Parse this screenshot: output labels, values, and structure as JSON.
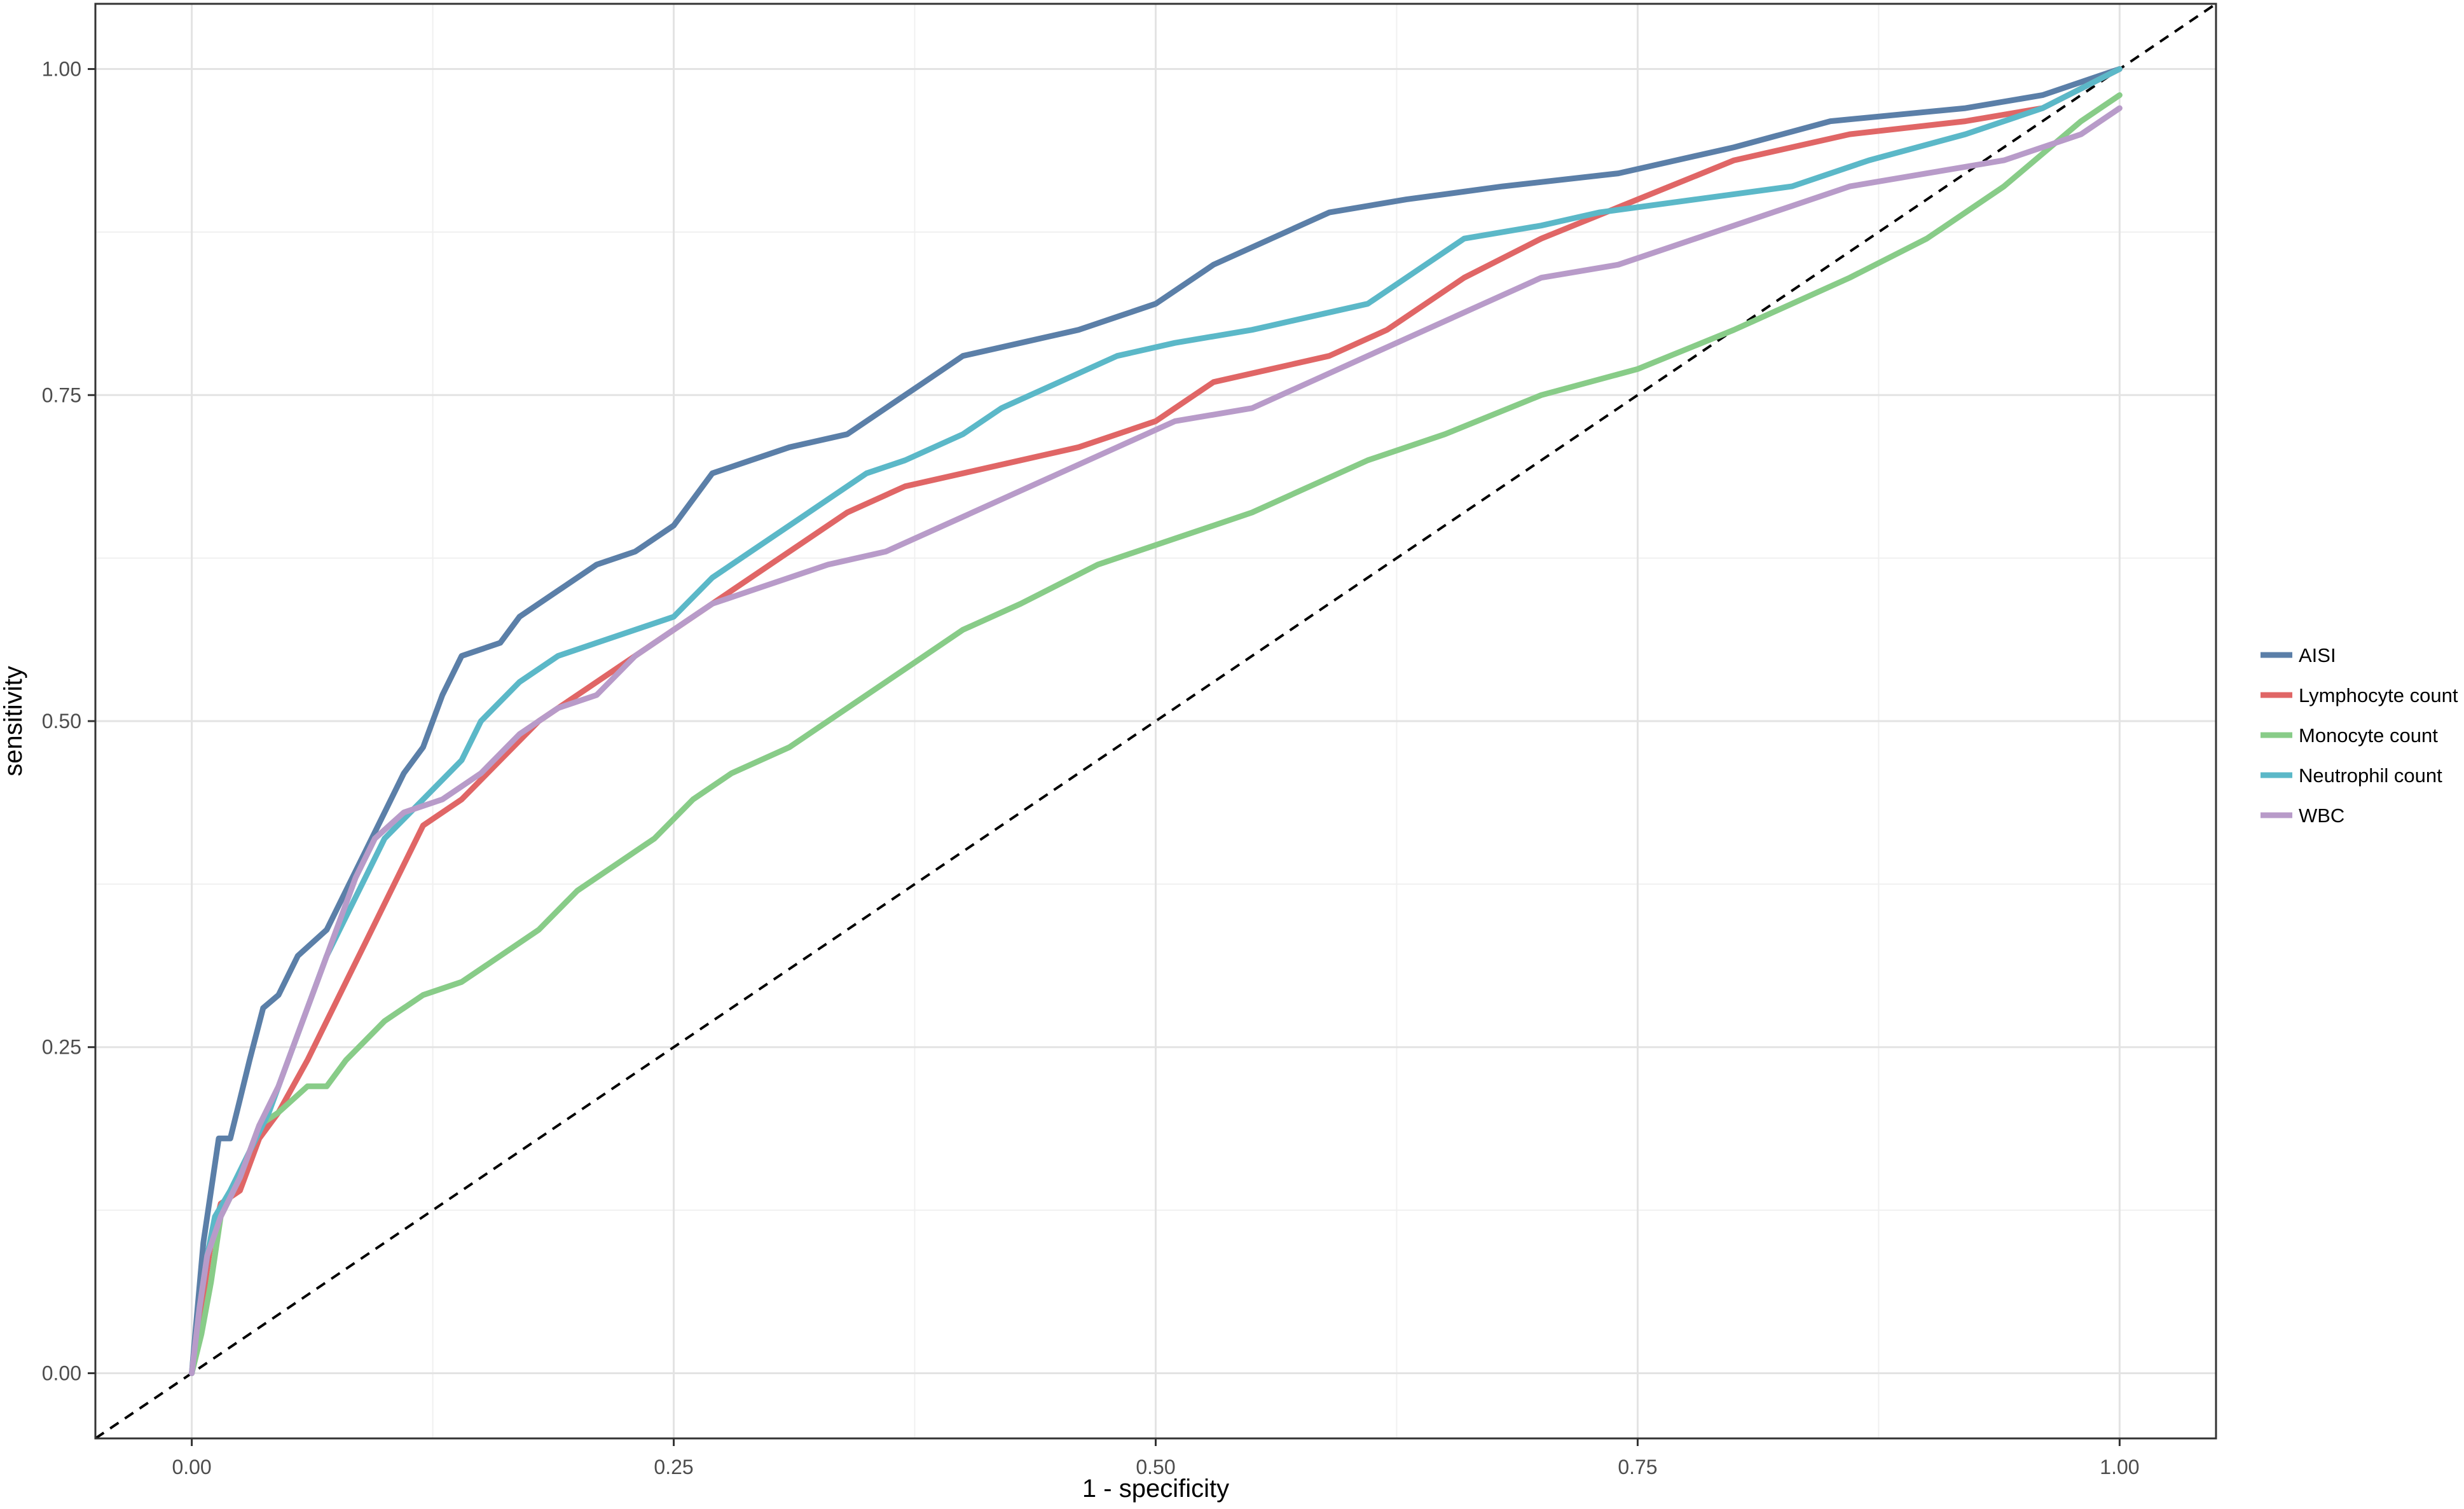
{
  "chart_data": {
    "type": "line",
    "title": "",
    "xlabel": "1 - specificity",
    "ylabel": "sensitivity",
    "xlim": [
      -0.05,
      1.05
    ],
    "ylim": [
      -0.05,
      1.05
    ],
    "x_ticks": [
      0.0,
      0.25,
      0.5,
      0.75,
      1.0
    ],
    "x_tick_labels": [
      "0.00",
      "0.25",
      "0.50",
      "0.75",
      "1.00"
    ],
    "y_ticks": [
      0.0,
      0.25,
      0.5,
      0.75,
      1.0
    ],
    "y_tick_labels": [
      "0.00",
      "0.25",
      "0.50",
      "0.75",
      "1.00"
    ],
    "grid": true,
    "legend_position": "right",
    "reference_line": {
      "style": "dashed",
      "color": "#000000",
      "x": [
        -0.05,
        1.05
      ],
      "y": [
        -0.05,
        1.05
      ]
    },
    "series": [
      {
        "name": "AISI",
        "color": "#5B7FA8",
        "points": [
          [
            0.0,
            0.0
          ],
          [
            0.003,
            0.05
          ],
          [
            0.006,
            0.1
          ],
          [
            0.01,
            0.14
          ],
          [
            0.014,
            0.18
          ],
          [
            0.02,
            0.18
          ],
          [
            0.025,
            0.21
          ],
          [
            0.03,
            0.24
          ],
          [
            0.037,
            0.28
          ],
          [
            0.045,
            0.29
          ],
          [
            0.055,
            0.32
          ],
          [
            0.07,
            0.34
          ],
          [
            0.08,
            0.37
          ],
          [
            0.09,
            0.4
          ],
          [
            0.1,
            0.43
          ],
          [
            0.11,
            0.46
          ],
          [
            0.12,
            0.48
          ],
          [
            0.13,
            0.52
          ],
          [
            0.14,
            0.55
          ],
          [
            0.16,
            0.56
          ],
          [
            0.17,
            0.58
          ],
          [
            0.19,
            0.6
          ],
          [
            0.21,
            0.62
          ],
          [
            0.23,
            0.63
          ],
          [
            0.25,
            0.65
          ],
          [
            0.27,
            0.69
          ],
          [
            0.29,
            0.7
          ],
          [
            0.31,
            0.71
          ],
          [
            0.34,
            0.72
          ],
          [
            0.36,
            0.74
          ],
          [
            0.38,
            0.76
          ],
          [
            0.4,
            0.78
          ],
          [
            0.43,
            0.79
          ],
          [
            0.46,
            0.8
          ],
          [
            0.48,
            0.81
          ],
          [
            0.5,
            0.82
          ],
          [
            0.53,
            0.85
          ],
          [
            0.56,
            0.87
          ],
          [
            0.59,
            0.89
          ],
          [
            0.63,
            0.9
          ],
          [
            0.68,
            0.91
          ],
          [
            0.74,
            0.92
          ],
          [
            0.8,
            0.94
          ],
          [
            0.85,
            0.96
          ],
          [
            0.92,
            0.97
          ],
          [
            0.96,
            0.98
          ],
          [
            1.0,
            1.0
          ]
        ]
      },
      {
        "name": "Lymphocyte count",
        "color": "#E06666",
        "points": [
          [
            0.0,
            0.0
          ],
          [
            0.005,
            0.05
          ],
          [
            0.01,
            0.1
          ],
          [
            0.015,
            0.13
          ],
          [
            0.025,
            0.14
          ],
          [
            0.035,
            0.18
          ],
          [
            0.045,
            0.2
          ],
          [
            0.06,
            0.24
          ],
          [
            0.07,
            0.27
          ],
          [
            0.08,
            0.3
          ],
          [
            0.09,
            0.33
          ],
          [
            0.1,
            0.36
          ],
          [
            0.11,
            0.39
          ],
          [
            0.12,
            0.42
          ],
          [
            0.14,
            0.44
          ],
          [
            0.16,
            0.47
          ],
          [
            0.18,
            0.5
          ],
          [
            0.2,
            0.52
          ],
          [
            0.22,
            0.54
          ],
          [
            0.24,
            0.56
          ],
          [
            0.26,
            0.58
          ],
          [
            0.28,
            0.6
          ],
          [
            0.3,
            0.62
          ],
          [
            0.32,
            0.64
          ],
          [
            0.34,
            0.66
          ],
          [
            0.37,
            0.68
          ],
          [
            0.4,
            0.69
          ],
          [
            0.43,
            0.7
          ],
          [
            0.46,
            0.71
          ],
          [
            0.5,
            0.73
          ],
          [
            0.53,
            0.76
          ],
          [
            0.56,
            0.77
          ],
          [
            0.59,
            0.78
          ],
          [
            0.62,
            0.8
          ],
          [
            0.66,
            0.84
          ],
          [
            0.7,
            0.87
          ],
          [
            0.75,
            0.9
          ],
          [
            0.8,
            0.93
          ],
          [
            0.86,
            0.95
          ],
          [
            0.92,
            0.96
          ],
          [
            0.96,
            0.97
          ],
          [
            1.0,
            1.0
          ]
        ]
      },
      {
        "name": "Monocyte count",
        "color": "#88CC88",
        "points": [
          [
            0.0,
            0.0
          ],
          [
            0.005,
            0.03
          ],
          [
            0.01,
            0.07
          ],
          [
            0.015,
            0.12
          ],
          [
            0.025,
            0.15
          ],
          [
            0.035,
            0.19
          ],
          [
            0.045,
            0.2
          ],
          [
            0.06,
            0.22
          ],
          [
            0.07,
            0.22
          ],
          [
            0.08,
            0.24
          ],
          [
            0.1,
            0.27
          ],
          [
            0.12,
            0.29
          ],
          [
            0.14,
            0.3
          ],
          [
            0.16,
            0.32
          ],
          [
            0.18,
            0.34
          ],
          [
            0.2,
            0.37
          ],
          [
            0.22,
            0.39
          ],
          [
            0.24,
            0.41
          ],
          [
            0.26,
            0.44
          ],
          [
            0.28,
            0.46
          ],
          [
            0.31,
            0.48
          ],
          [
            0.34,
            0.51
          ],
          [
            0.37,
            0.54
          ],
          [
            0.4,
            0.57
          ],
          [
            0.43,
            0.59
          ],
          [
            0.47,
            0.62
          ],
          [
            0.51,
            0.64
          ],
          [
            0.55,
            0.66
          ],
          [
            0.58,
            0.68
          ],
          [
            0.61,
            0.7
          ],
          [
            0.65,
            0.72
          ],
          [
            0.7,
            0.75
          ],
          [
            0.75,
            0.77
          ],
          [
            0.8,
            0.8
          ],
          [
            0.86,
            0.84
          ],
          [
            0.9,
            0.87
          ],
          [
            0.94,
            0.91
          ],
          [
            0.98,
            0.96
          ],
          [
            1.0,
            0.98
          ]
        ]
      },
      {
        "name": "Neutrophil count",
        "color": "#5BB8C8",
        "points": [
          [
            0.0,
            0.0
          ],
          [
            0.004,
            0.05
          ],
          [
            0.008,
            0.09
          ],
          [
            0.012,
            0.12
          ],
          [
            0.02,
            0.14
          ],
          [
            0.03,
            0.17
          ],
          [
            0.04,
            0.2
          ],
          [
            0.05,
            0.24
          ],
          [
            0.06,
            0.28
          ],
          [
            0.07,
            0.32
          ],
          [
            0.08,
            0.35
          ],
          [
            0.09,
            0.38
          ],
          [
            0.1,
            0.41
          ],
          [
            0.12,
            0.44
          ],
          [
            0.14,
            0.47
          ],
          [
            0.15,
            0.5
          ],
          [
            0.17,
            0.53
          ],
          [
            0.19,
            0.55
          ],
          [
            0.21,
            0.56
          ],
          [
            0.23,
            0.57
          ],
          [
            0.25,
            0.58
          ],
          [
            0.27,
            0.61
          ],
          [
            0.29,
            0.63
          ],
          [
            0.31,
            0.65
          ],
          [
            0.33,
            0.67
          ],
          [
            0.35,
            0.69
          ],
          [
            0.37,
            0.7
          ],
          [
            0.4,
            0.72
          ],
          [
            0.42,
            0.74
          ],
          [
            0.45,
            0.76
          ],
          [
            0.48,
            0.78
          ],
          [
            0.51,
            0.79
          ],
          [
            0.55,
            0.8
          ],
          [
            0.58,
            0.81
          ],
          [
            0.61,
            0.82
          ],
          [
            0.64,
            0.85
          ],
          [
            0.66,
            0.87
          ],
          [
            0.7,
            0.88
          ],
          [
            0.73,
            0.89
          ],
          [
            0.78,
            0.9
          ],
          [
            0.83,
            0.91
          ],
          [
            0.87,
            0.93
          ],
          [
            0.92,
            0.95
          ],
          [
            0.96,
            0.97
          ],
          [
            1.0,
            1.0
          ]
        ]
      },
      {
        "name": "WBC",
        "color": "#B89BC9",
        "points": [
          [
            0.0,
            0.0
          ],
          [
            0.004,
            0.05
          ],
          [
            0.008,
            0.09
          ],
          [
            0.015,
            0.12
          ],
          [
            0.025,
            0.15
          ],
          [
            0.035,
            0.19
          ],
          [
            0.045,
            0.22
          ],
          [
            0.055,
            0.26
          ],
          [
            0.065,
            0.3
          ],
          [
            0.075,
            0.34
          ],
          [
            0.085,
            0.38
          ],
          [
            0.095,
            0.41
          ],
          [
            0.11,
            0.43
          ],
          [
            0.13,
            0.44
          ],
          [
            0.15,
            0.46
          ],
          [
            0.17,
            0.49
          ],
          [
            0.19,
            0.51
          ],
          [
            0.21,
            0.52
          ],
          [
            0.23,
            0.55
          ],
          [
            0.25,
            0.57
          ],
          [
            0.27,
            0.59
          ],
          [
            0.29,
            0.6
          ],
          [
            0.31,
            0.61
          ],
          [
            0.33,
            0.62
          ],
          [
            0.36,
            0.63
          ],
          [
            0.39,
            0.65
          ],
          [
            0.42,
            0.67
          ],
          [
            0.45,
            0.69
          ],
          [
            0.48,
            0.71
          ],
          [
            0.51,
            0.73
          ],
          [
            0.55,
            0.74
          ],
          [
            0.58,
            0.76
          ],
          [
            0.61,
            0.78
          ],
          [
            0.64,
            0.8
          ],
          [
            0.67,
            0.82
          ],
          [
            0.7,
            0.84
          ],
          [
            0.74,
            0.85
          ],
          [
            0.78,
            0.87
          ],
          [
            0.82,
            0.89
          ],
          [
            0.86,
            0.91
          ],
          [
            0.9,
            0.92
          ],
          [
            0.94,
            0.93
          ],
          [
            0.98,
            0.95
          ],
          [
            1.0,
            0.97
          ]
        ]
      }
    ]
  }
}
